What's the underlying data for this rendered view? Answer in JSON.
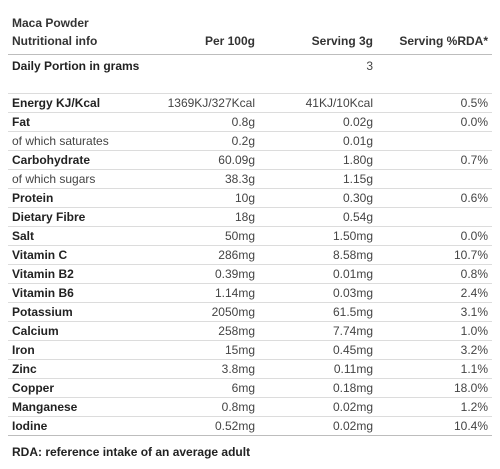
{
  "header": {
    "product": "Maca Powder",
    "subtitle": "Nutritional info",
    "col_per100": "Per 100g",
    "col_serving": "Serving 3g",
    "col_rda": "Serving %RDA*"
  },
  "daily_portion": {
    "label": "Daily Portion in grams",
    "per100": "",
    "serving": "3",
    "rda": ""
  },
  "rows": [
    {
      "name": "Energy KJ/Kcal",
      "sub": false,
      "per100": "1369KJ/327Kcal",
      "serving": "41KJ/10Kcal",
      "rda": "0.5%"
    },
    {
      "name": "Fat",
      "sub": false,
      "per100": "0.8g",
      "serving": "0.02g",
      "rda": "0.0%"
    },
    {
      "name": "of which saturates",
      "sub": true,
      "per100": "0.2g",
      "serving": "0.01g",
      "rda": ""
    },
    {
      "name": "Carbohydrate",
      "sub": false,
      "per100": "60.09g",
      "serving": "1.80g",
      "rda": "0.7%"
    },
    {
      "name": "of which sugars",
      "sub": true,
      "per100": "38.3g",
      "serving": "1.15g",
      "rda": ""
    },
    {
      "name": "Protein",
      "sub": false,
      "per100": "10g",
      "serving": "0.30g",
      "rda": "0.6%"
    },
    {
      "name": "Dietary Fibre",
      "sub": false,
      "per100": "18g",
      "serving": "0.54g",
      "rda": ""
    },
    {
      "name": "Salt",
      "sub": false,
      "per100": "50mg",
      "serving": "1.50mg",
      "rda": "0.0%"
    },
    {
      "name": "Vitamin C",
      "sub": false,
      "per100": "286mg",
      "serving": "8.58mg",
      "rda": "10.7%"
    },
    {
      "name": "Vitamin B2",
      "sub": false,
      "per100": "0.39mg",
      "serving": "0.01mg",
      "rda": "0.8%"
    },
    {
      "name": "Vitamin B6",
      "sub": false,
      "per100": "1.14mg",
      "serving": "0.03mg",
      "rda": "2.4%"
    },
    {
      "name": "Potassium",
      "sub": false,
      "per100": "2050mg",
      "serving": "61.5mg",
      "rda": "3.1%"
    },
    {
      "name": "Calcium",
      "sub": false,
      "per100": "258mg",
      "serving": "7.74mg",
      "rda": "1.0%"
    },
    {
      "name": "Iron",
      "sub": false,
      "per100": "15mg",
      "serving": "0.45mg",
      "rda": "3.2%"
    },
    {
      "name": "Zinc",
      "sub": false,
      "per100": "3.8mg",
      "serving": "0.11mg",
      "rda": "1.1%"
    },
    {
      "name": "Copper",
      "sub": false,
      "per100": "6mg",
      "serving": "0.18mg",
      "rda": "18.0%"
    },
    {
      "name": "Manganese",
      "sub": false,
      "per100": "0.8mg",
      "serving": "0.02mg",
      "rda": "1.2%"
    },
    {
      "name": "Iodine",
      "sub": false,
      "per100": "0.52mg",
      "serving": "0.02mg",
      "rda": "10.4%"
    }
  ],
  "footer": {
    "note": "RDA: reference intake of an average adult"
  }
}
